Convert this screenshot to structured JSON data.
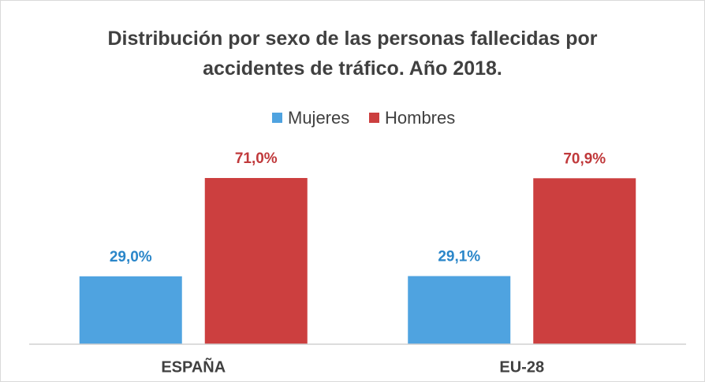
{
  "chart_data": {
    "type": "bar",
    "title": "Distribución por sexo de las personas fallecidas por accidentes de tráfico. Año 2018.",
    "categories": [
      "ESPAÑA",
      "EU-28"
    ],
    "series": [
      {
        "name": "Mujeres",
        "color": "#4fa3e0",
        "values": [
          29.0,
          29.1
        ],
        "value_labels": [
          "29,0%",
          "29,1%"
        ],
        "label_color": "#2a86c9"
      },
      {
        "name": "Hombres",
        "color": "#cc3f3f",
        "values": [
          71.0,
          70.9
        ],
        "value_labels": [
          "71,0%",
          "70,9%"
        ],
        "label_color": "#c0393b"
      }
    ],
    "legend": "top"
  }
}
